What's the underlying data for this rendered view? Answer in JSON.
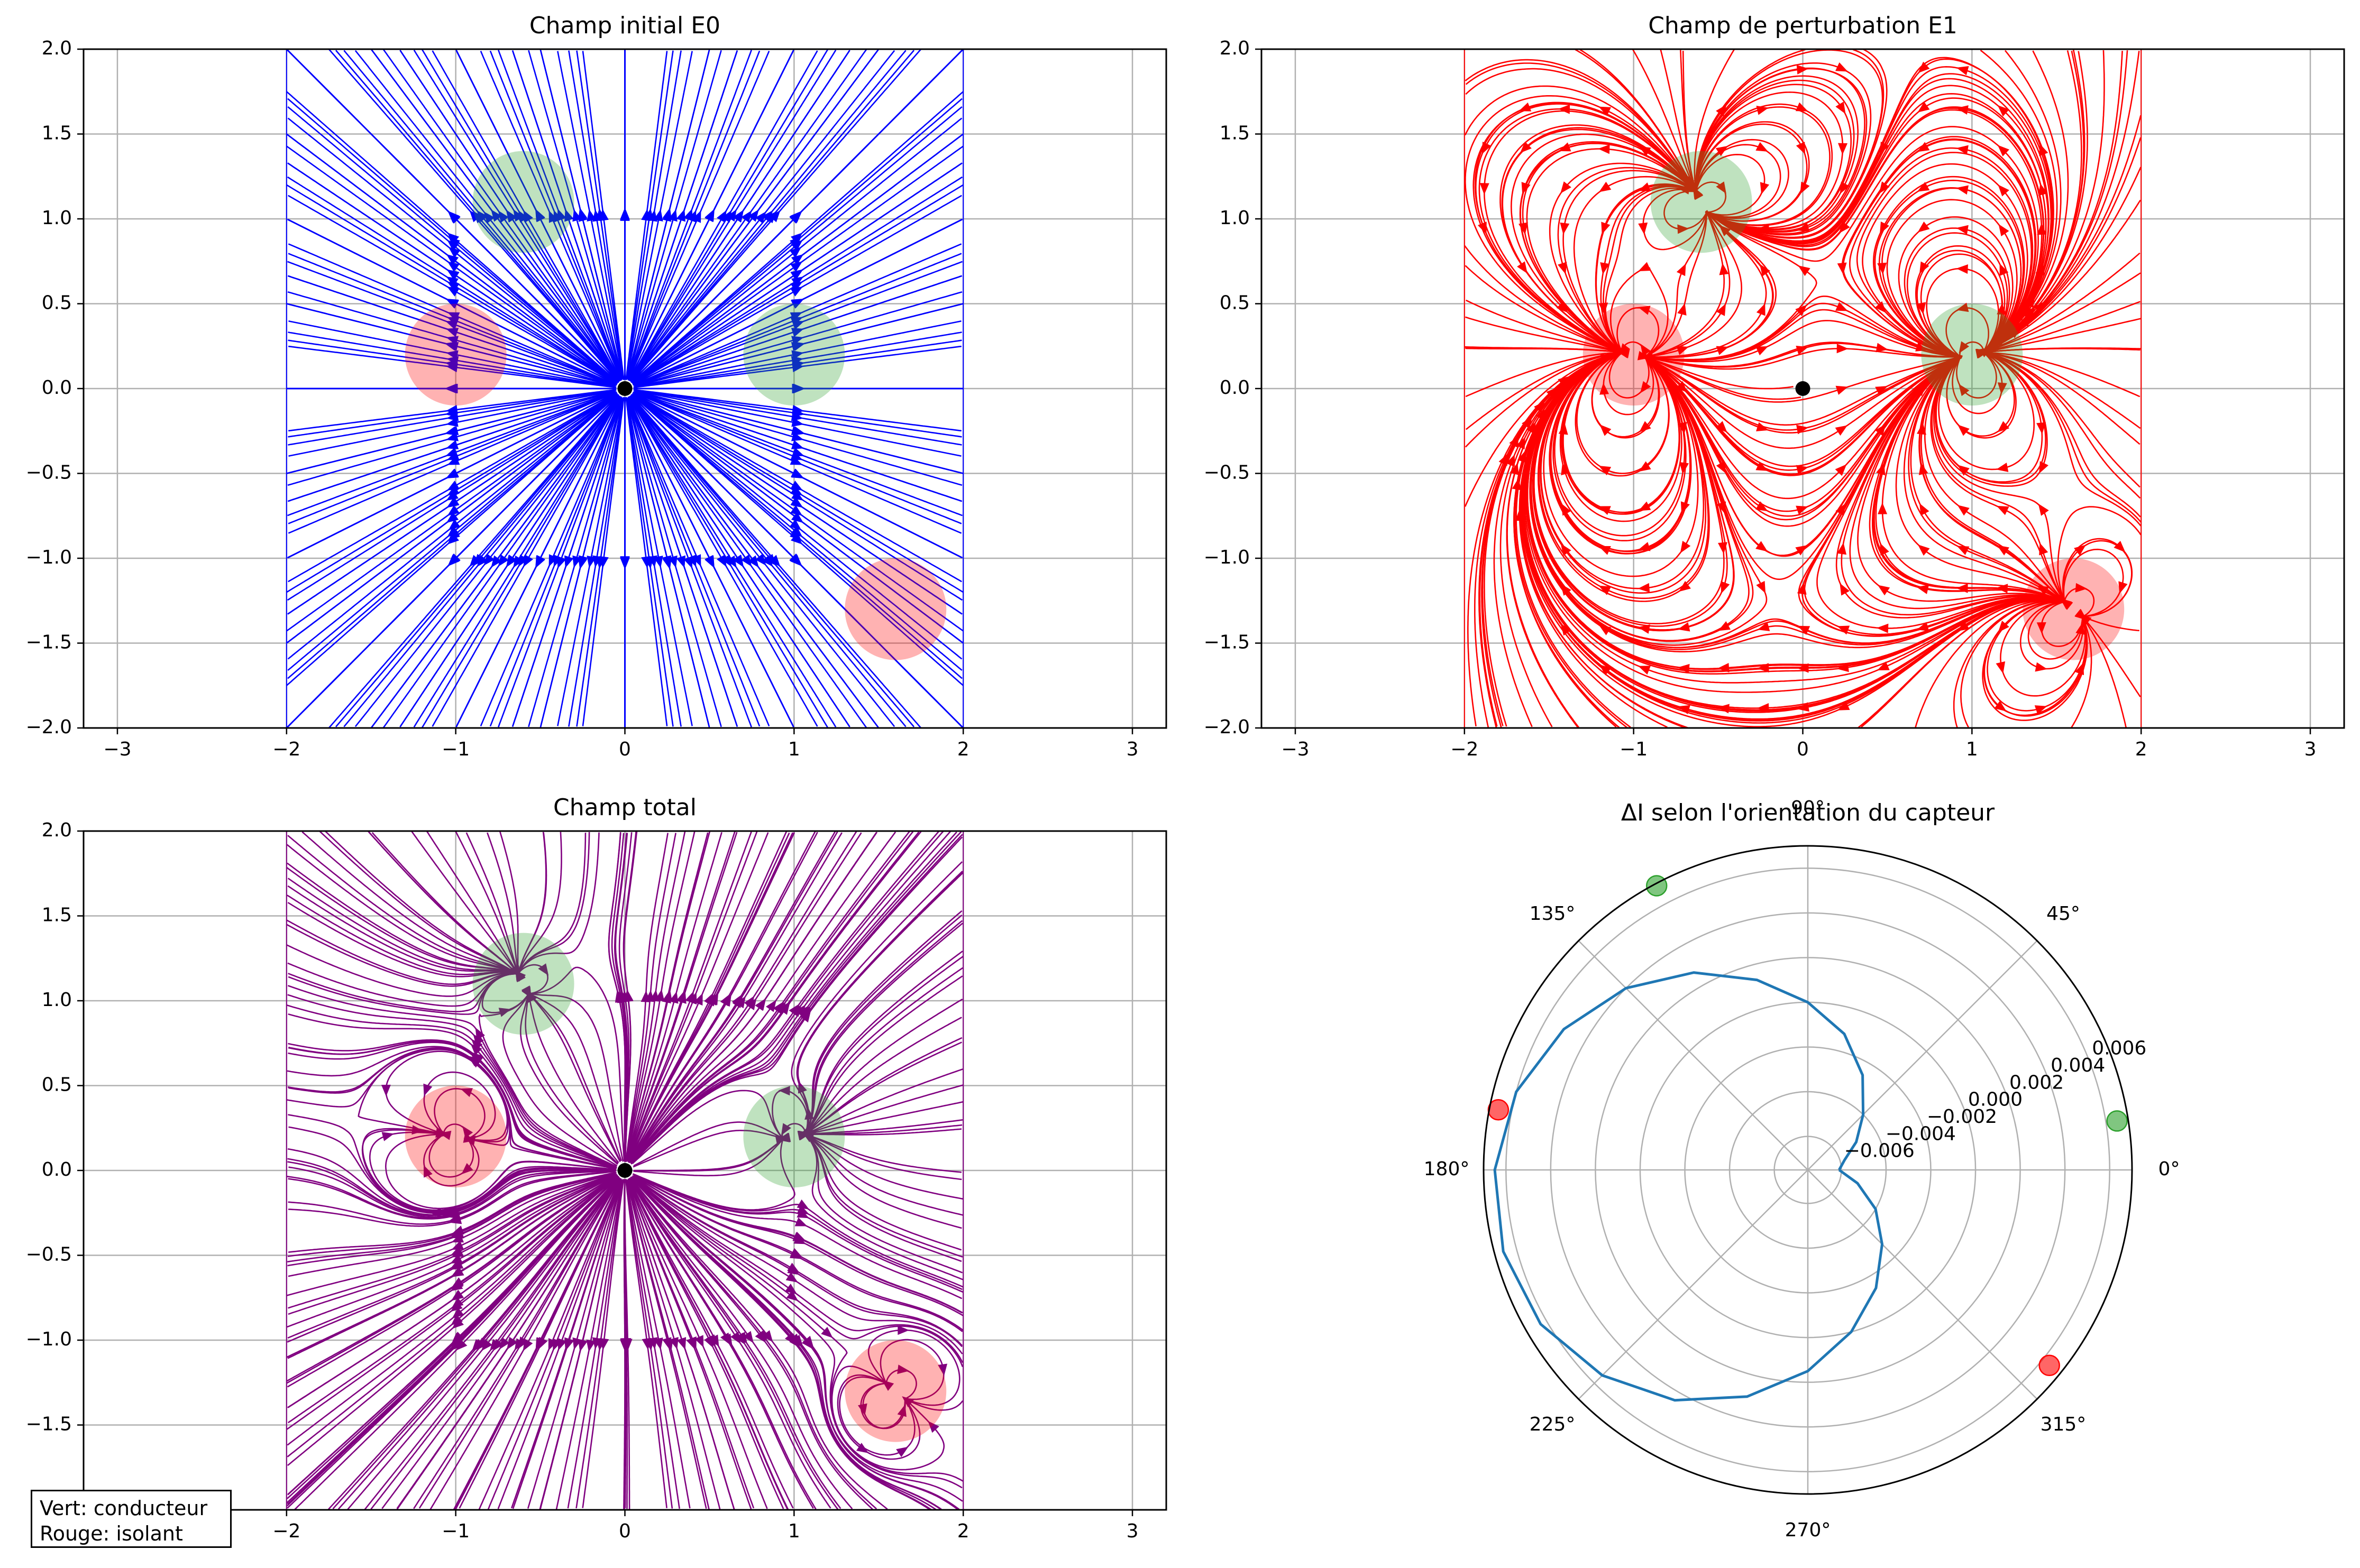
{
  "figure": {
    "legend": {
      "line1": "Vert: conducteur",
      "line2": "Rouge: isolant"
    }
  },
  "colors": {
    "conductor_fill": "#2ca02c",
    "insulator_fill": "#ff0000",
    "E0_lines": "#0000ff",
    "E1_lines": "#ff0000",
    "total_lines": "#800080",
    "polar_curve": "#1f77b4",
    "grid": "#b0b0b0",
    "source": "#000000"
  },
  "chart_data": [
    {
      "type": "streamplot",
      "title": "Champ initial E0",
      "xlabel": "",
      "ylabel": "",
      "xlim": [
        -3.2,
        3.2
      ],
      "ylim": [
        -2.0,
        2.0
      ],
      "xticks": [
        "−3",
        "−2",
        "−1",
        "0",
        "1",
        "2",
        "3"
      ],
      "yticks": [
        "2.0",
        "1.5",
        "1.0",
        "0.5",
        "0.0",
        "−0.5",
        "−1.0",
        "−1.5",
        "−2.0"
      ],
      "grid": true,
      "field": "E0",
      "stream_domain": {
        "x": [
          -2,
          2
        ],
        "y": [
          -2,
          2
        ]
      },
      "source": {
        "x": 0,
        "y": 0
      },
      "objects": [
        {
          "kind": "conducteur",
          "x": -0.6,
          "y": 1.1,
          "r": 0.3
        },
        {
          "kind": "conducteur",
          "x": 1.0,
          "y": 0.2,
          "r": 0.3
        },
        {
          "kind": "isolant",
          "x": -1.0,
          "y": 0.2,
          "r": 0.3
        },
        {
          "kind": "isolant",
          "x": 1.6,
          "y": -1.3,
          "r": 0.3
        }
      ]
    },
    {
      "type": "streamplot",
      "title": "Champ de perturbation E1",
      "xlabel": "",
      "ylabel": "",
      "xlim": [
        -3.2,
        3.2
      ],
      "ylim": [
        -2.0,
        2.0
      ],
      "xticks": [
        "−3",
        "−2",
        "−1",
        "0",
        "1",
        "2",
        "3"
      ],
      "yticks": [
        "2.0",
        "1.5",
        "1.0",
        "0.5",
        "0.0",
        "−0.5",
        "−1.0",
        "−1.5",
        "−2.0"
      ],
      "grid": true,
      "field": "E1",
      "stream_domain": {
        "x": [
          -2,
          2
        ],
        "y": [
          -2,
          2
        ]
      },
      "source": {
        "x": 0,
        "y": 0
      },
      "objects": [
        {
          "kind": "conducteur",
          "x": -0.6,
          "y": 1.1,
          "r": 0.3
        },
        {
          "kind": "conducteur",
          "x": 1.0,
          "y": 0.2,
          "r": 0.3
        },
        {
          "kind": "isolant",
          "x": -1.0,
          "y": 0.2,
          "r": 0.3
        },
        {
          "kind": "isolant",
          "x": 1.6,
          "y": -1.3,
          "r": 0.3
        }
      ]
    },
    {
      "type": "streamplot",
      "title": "Champ total",
      "xlabel": "",
      "ylabel": "",
      "xlim": [
        -3.2,
        3.2
      ],
      "ylim": [
        -2.0,
        2.0
      ],
      "xticks": [
        "−2",
        "−1",
        "0",
        "1",
        "2",
        "3"
      ],
      "yticks": [
        "2.0",
        "1.5",
        "1.0",
        "0.5",
        "0.0",
        "−0.5",
        "−1.0",
        "−1.5"
      ],
      "grid": true,
      "field": "total",
      "stream_domain": {
        "x": [
          -2,
          2
        ],
        "y": [
          -2,
          2
        ]
      },
      "source": {
        "x": 0,
        "y": 0
      },
      "objects": [
        {
          "kind": "conducteur",
          "x": -0.6,
          "y": 1.1,
          "r": 0.3
        },
        {
          "kind": "conducteur",
          "x": 1.0,
          "y": 0.2,
          "r": 0.3
        },
        {
          "kind": "isolant",
          "x": -1.0,
          "y": 0.2,
          "r": 0.3
        },
        {
          "kind": "isolant",
          "x": 1.6,
          "y": -1.3,
          "r": 0.3
        }
      ]
    },
    {
      "type": "polar",
      "title": "ΔI selon l'orientation du capteur",
      "theta_ticks": [
        "0°",
        "45°",
        "90°",
        "135°",
        "180°",
        "225°",
        "270°",
        "315°"
      ],
      "r_ticks": [
        "−0.006",
        "−0.004",
        "−0.002",
        "0.000",
        "0.002",
        "0.004",
        "0.006"
      ],
      "rlim": [
        -0.0075,
        0.007
      ],
      "series": [
        {
          "theta_deg": [
            0,
            15,
            30,
            45,
            60,
            75,
            90,
            105,
            120,
            135,
            150,
            165,
            180,
            195,
            210,
            225,
            240,
            255,
            270,
            285,
            300,
            315,
            330,
            345,
            360
          ],
          "r": [
            -0.0061,
            -0.0058,
            -0.005,
            -0.004,
            -0.0026,
            -0.0012,
            0.0,
            0.0013,
            0.0027,
            0.004,
            0.0051,
            0.006,
            0.0065,
            0.0066,
            0.0063,
            0.0055,
            0.0044,
            0.003,
            0.0015,
            0.0,
            -0.0014,
            -0.0028,
            -0.004,
            -0.0052,
            -0.0061
          ]
        }
      ],
      "objects": [
        {
          "kind": "conducteur",
          "theta_deg": 118,
          "r": 0.0069
        },
        {
          "kind": "conducteur",
          "theta_deg": 9,
          "r": 0.0065
        },
        {
          "kind": "isolant",
          "theta_deg": 169,
          "r": 0.0066
        },
        {
          "kind": "isolant",
          "theta_deg": 321,
          "r": 0.0064
        }
      ]
    }
  ]
}
